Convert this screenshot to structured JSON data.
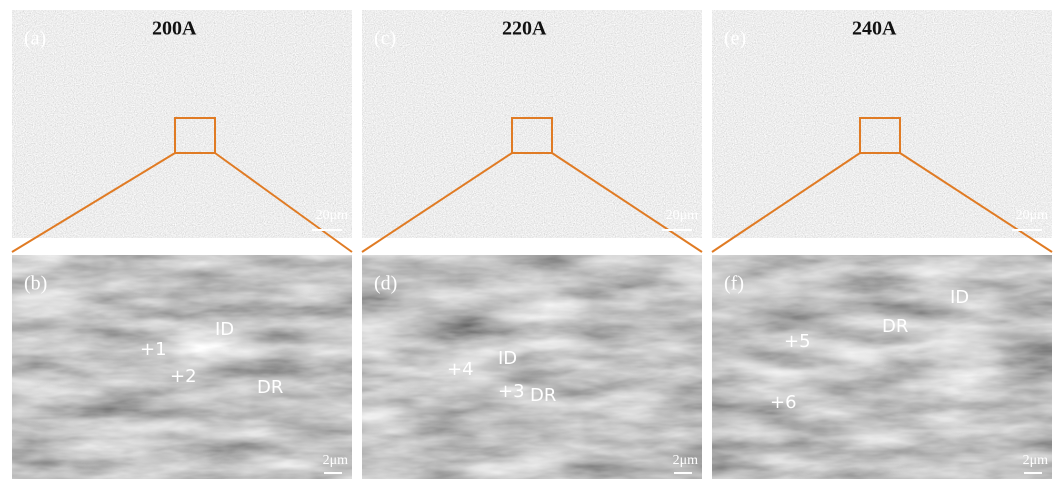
{
  "panels": [
    {
      "top": {
        "label": "(a)",
        "current": "200A",
        "scale": "20μm"
      },
      "bottom": {
        "label": "(b)",
        "scale": "2μm",
        "annotations": [
          "+1",
          "+2",
          "ID",
          "DR"
        ]
      }
    },
    {
      "top": {
        "label": "(c)",
        "current": "220A",
        "scale": "20μm"
      },
      "bottom": {
        "label": "(d)",
        "scale": "2μm",
        "annotations": [
          "+4",
          "ID",
          "+3",
          "DR"
        ]
      }
    },
    {
      "top": {
        "label": "(e)",
        "current": "240A",
        "scale": "20μm"
      },
      "bottom": {
        "label": "(f)",
        "scale": "2μm",
        "annotations": [
          "ID",
          "DR",
          "+5",
          "+6"
        ]
      }
    }
  ]
}
